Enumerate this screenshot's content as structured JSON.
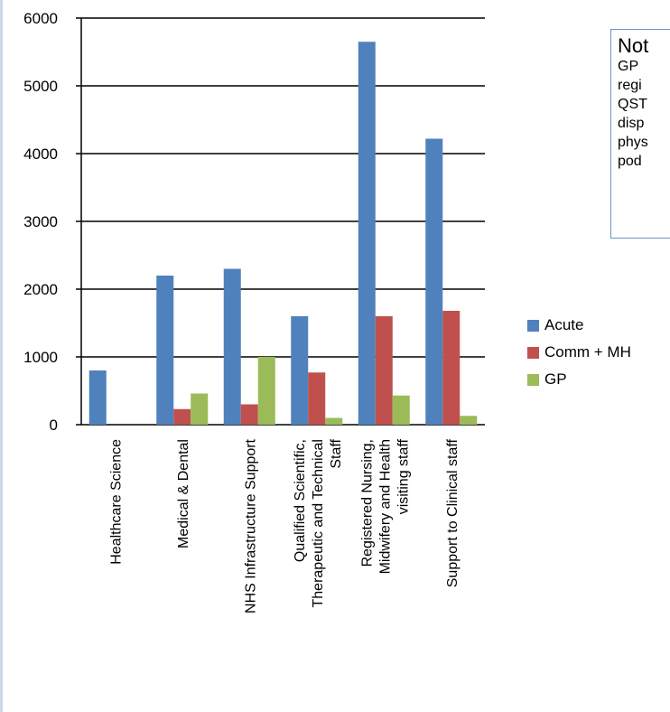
{
  "chart_data": {
    "type": "bar",
    "categories": [
      [
        "Healthcare Science"
      ],
      [
        "Medical & Dental"
      ],
      [
        "NHS Infrastructure Support"
      ],
      [
        "Qualified Scientific,",
        "Therapeutic and Technical",
        "Staff"
      ],
      [
        "Registered Nursing,",
        "Midwifery and Health",
        "visiting staff"
      ],
      [
        "Support to Clinical staff"
      ]
    ],
    "series": [
      {
        "name": "Acute",
        "color": "#4f81bd",
        "values": [
          800,
          2200,
          2300,
          1600,
          5650,
          4220
        ]
      },
      {
        "name": "Comm + MH",
        "color": "#c0504d",
        "values": [
          0,
          230,
          300,
          770,
          1600,
          1680
        ]
      },
      {
        "name": "GP",
        "color": "#9bbb59",
        "values": [
          0,
          460,
          1000,
          100,
          430,
          130
        ]
      }
    ],
    "ylim": [
      0,
      6000
    ],
    "yticks": [
      0,
      1000,
      2000,
      3000,
      4000,
      5000,
      6000
    ],
    "grid": true,
    "legend_position": "right"
  },
  "note": {
    "title": "Not",
    "lines": [
      "GP",
      "regi",
      "QST",
      "disp",
      "phys",
      "pod"
    ]
  }
}
